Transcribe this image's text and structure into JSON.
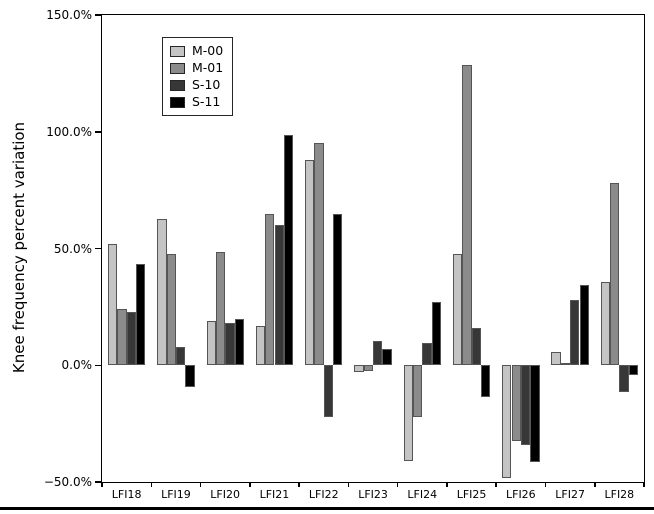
{
  "chart_data": {
    "type": "bar",
    "title": "",
    "xlabel": "",
    "ylabel": "Knee frequency percent variation",
    "categories": [
      "LFI18",
      "LFI19",
      "LFI20",
      "LFI21",
      "LFI22",
      "LFI23",
      "LFI24",
      "LFI25",
      "LFI26",
      "LFI27",
      "LFI28"
    ],
    "series": [
      {
        "name": "M-00",
        "color": "#c4c4c4",
        "values": [
          52,
          62.5,
          19,
          17,
          88,
          -3,
          -41,
          47.5,
          -48.5,
          5.5,
          35.5
        ]
      },
      {
        "name": "M-01",
        "color": "#8b8b8b",
        "values": [
          24,
          47.5,
          48.5,
          65,
          95,
          -2.5,
          -22,
          128.5,
          -32.5,
          1,
          78
        ]
      },
      {
        "name": "S-10",
        "color": "#373737",
        "values": [
          23,
          8,
          18,
          60,
          -22,
          10.5,
          9.5,
          16,
          -34,
          28,
          -11.5
        ]
      },
      {
        "name": "S-11",
        "color": "#000000",
        "values": [
          43.5,
          -9.5,
          20,
          98.5,
          65,
          7,
          27,
          -13.5,
          -41.5,
          34.5,
          -4
        ]
      }
    ],
    "ylim": [
      -50,
      150
    ],
    "ytick_values": [
      150,
      100,
      50,
      0,
      -50
    ],
    "ytick_labels": [
      "150.0%",
      "100.0%",
      "50.0%",
      "0.0%",
      "−50.0%"
    ],
    "grid": false,
    "legend_position": "upper-left",
    "bar_edge_color": "#555555",
    "axis_color": "#000000"
  }
}
